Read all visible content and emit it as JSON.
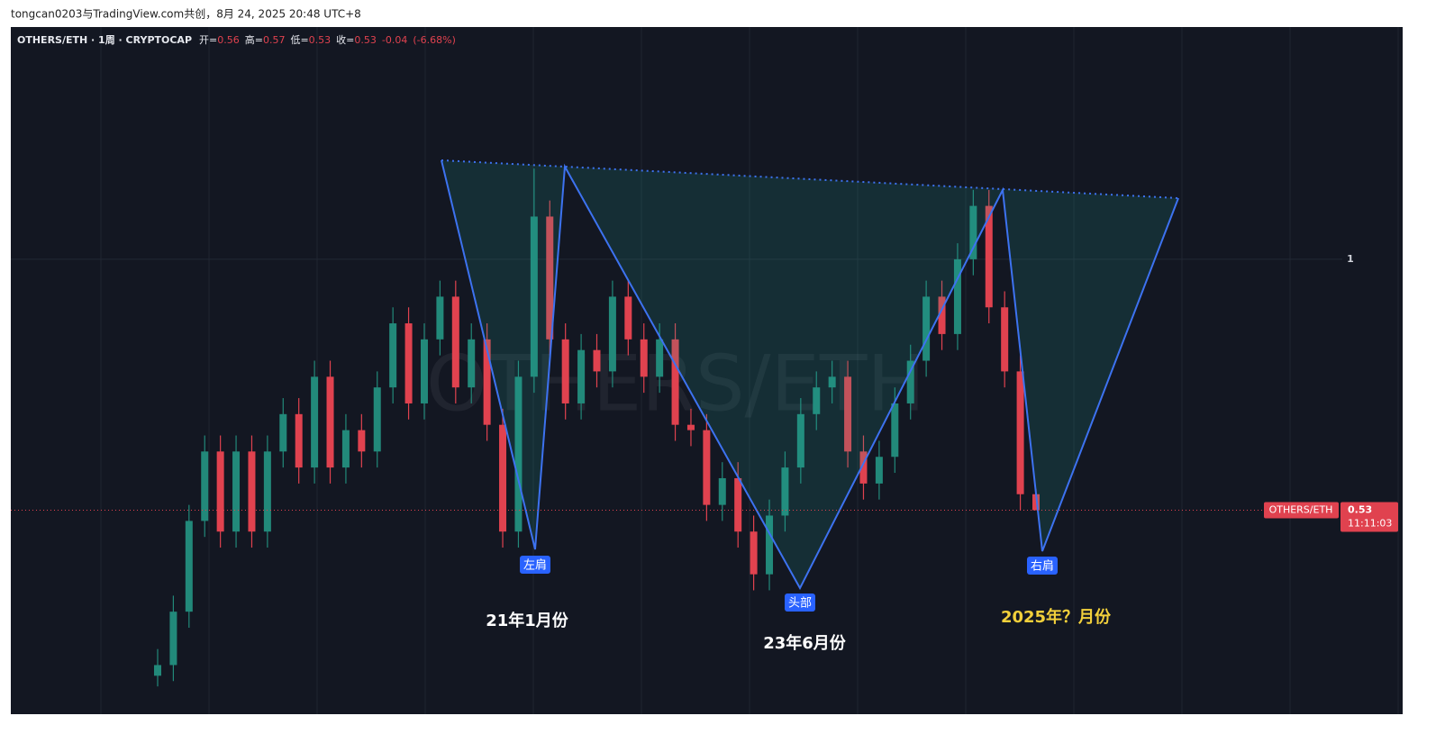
{
  "chart_data": {
    "type": "candlestick",
    "attribution": "tongcan0203与TradingView.com共创，8月 24, 2025 20:48 UTC+8",
    "title": "OTHERS/ETH · 1周 · CRYPTOCAP",
    "legend": {
      "open_label": "开=",
      "open": 0.56,
      "high_label": "高=",
      "high": 0.57,
      "low_label": "低=",
      "low": 0.53,
      "close_label": "收=",
      "close": 0.53,
      "change": -0.04,
      "change_pct": "(-6.68%)"
    },
    "watermark": "OTHERS/ETH",
    "up_color": "#22897a",
    "down_color": "#e0424f",
    "open": [
      0.22,
      0.24,
      0.34,
      0.51,
      0.64,
      0.49,
      0.64,
      0.49,
      0.64,
      0.71,
      0.61,
      0.78,
      0.61,
      0.68,
      0.64,
      0.76,
      0.88,
      0.73,
      0.85,
      0.93,
      0.76,
      0.85,
      0.69,
      0.49,
      0.78,
      1.08,
      0.85,
      0.73,
      0.83,
      0.79,
      0.93,
      0.85,
      0.78,
      0.85,
      0.69,
      0.68,
      0.54,
      0.59,
      0.49,
      0.41,
      0.52,
      0.61,
      0.71,
      0.76,
      0.78,
      0.64,
      0.58,
      0.63,
      0.73,
      0.81,
      0.93,
      0.86,
      1.0,
      1.1,
      0.91,
      0.79,
      0.56
    ],
    "high": [
      0.27,
      0.37,
      0.54,
      0.67,
      0.67,
      0.67,
      0.67,
      0.67,
      0.74,
      0.74,
      0.81,
      0.81,
      0.71,
      0.71,
      0.79,
      0.91,
      0.91,
      0.88,
      0.96,
      0.96,
      0.88,
      0.88,
      0.72,
      0.81,
      1.17,
      1.11,
      0.88,
      0.86,
      0.86,
      0.96,
      0.96,
      0.88,
      0.88,
      0.88,
      0.72,
      0.71,
      0.62,
      0.62,
      0.52,
      0.55,
      0.64,
      0.74,
      0.79,
      0.81,
      0.81,
      0.67,
      0.66,
      0.76,
      0.84,
      0.96,
      0.96,
      1.03,
      1.13,
      1.13,
      0.94,
      0.82,
      0.57
    ],
    "low": [
      0.2,
      0.21,
      0.31,
      0.48,
      0.46,
      0.46,
      0.46,
      0.46,
      0.61,
      0.58,
      0.58,
      0.58,
      0.58,
      0.61,
      0.61,
      0.73,
      0.7,
      0.7,
      0.82,
      0.73,
      0.73,
      0.66,
      0.46,
      0.46,
      0.75,
      0.82,
      0.7,
      0.7,
      0.76,
      0.76,
      0.82,
      0.75,
      0.75,
      0.66,
      0.65,
      0.51,
      0.51,
      0.46,
      0.38,
      0.38,
      0.49,
      0.58,
      0.68,
      0.73,
      0.61,
      0.55,
      0.55,
      0.6,
      0.7,
      0.78,
      0.83,
      0.83,
      0.97,
      0.88,
      0.76,
      0.53,
      0.53
    ],
    "close": [
      0.24,
      0.34,
      0.51,
      0.64,
      0.49,
      0.64,
      0.49,
      0.64,
      0.71,
      0.61,
      0.78,
      0.61,
      0.68,
      0.64,
      0.76,
      0.88,
      0.73,
      0.85,
      0.93,
      0.76,
      0.85,
      0.69,
      0.49,
      0.78,
      1.08,
      0.85,
      0.73,
      0.83,
      0.79,
      0.93,
      0.85,
      0.78,
      0.85,
      0.69,
      0.68,
      0.54,
      0.59,
      0.49,
      0.41,
      0.52,
      0.61,
      0.71,
      0.76,
      0.78,
      0.64,
      0.58,
      0.63,
      0.73,
      0.81,
      0.93,
      0.86,
      1.0,
      1.1,
      0.91,
      0.79,
      0.56,
      0.53
    ],
    "ylim": [
      0.148,
      1.435
    ],
    "yticks": [
      1
    ],
    "last_price": {
      "name": "OTHERS/ETH",
      "value": 0.53,
      "countdown": "11:11:03"
    },
    "annotations": {
      "left_shoulder": "左肩",
      "head": "头部",
      "right_shoulder": "右肩",
      "left_date": "21年1月份",
      "head_date": "23年6月份",
      "right_date": "2025年？月份"
    }
  }
}
